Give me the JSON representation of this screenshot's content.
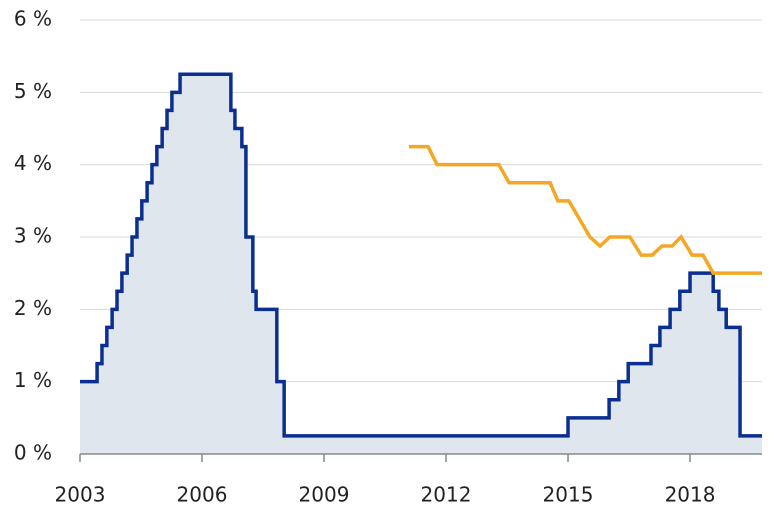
{
  "chart_data": {
    "type": "line",
    "xlim": [
      2003,
      2019.77
    ],
    "xticks": [
      2003,
      2006,
      2009,
      2012,
      2015,
      2018
    ],
    "ylim": [
      0,
      6
    ],
    "yticks": [
      {
        "value": 0,
        "label": "0 %"
      },
      {
        "value": 1,
        "label": "1 %"
      },
      {
        "value": 2,
        "label": "2 %"
      },
      {
        "value": 3,
        "label": "3 %"
      },
      {
        "value": 4,
        "label": "4 %"
      },
      {
        "value": 5,
        "label": "5 %"
      },
      {
        "value": 6,
        "label": "6 %"
      }
    ],
    "grid": true,
    "series": [
      {
        "color": "#0b2f91",
        "area_color": "#dfe6ee",
        "fill": true,
        "x": [
          2003.0,
          2003.42,
          2003.42,
          2003.54,
          2003.54,
          2003.66,
          2003.66,
          2003.79,
          2003.79,
          2003.91,
          2003.91,
          2004.03,
          2004.03,
          2004.16,
          2004.16,
          2004.28,
          2004.28,
          2004.4,
          2004.4,
          2004.52,
          2004.52,
          2004.65,
          2004.65,
          2004.77,
          2004.77,
          2004.89,
          2004.89,
          2005.02,
          2005.02,
          2005.14,
          2005.14,
          2005.26,
          2005.26,
          2005.46,
          2005.46,
          2006.71,
          2006.71,
          2006.81,
          2006.81,
          2006.98,
          2006.98,
          2007.08,
          2007.08,
          2007.25,
          2007.25,
          2007.33,
          2007.33,
          2007.84,
          2007.84,
          2008.02,
          2008.02,
          2015.0,
          2015.0,
          2016.01,
          2016.01,
          2016.25,
          2016.25,
          2016.48,
          2016.48,
          2017.04,
          2017.04,
          2017.26,
          2017.26,
          2017.51,
          2017.51,
          2017.75,
          2017.75,
          2018.0,
          2018.0,
          2018.57,
          2018.57,
          2018.71,
          2018.71,
          2018.89,
          2018.89,
          2019.23,
          2019.23,
          2019.77
        ],
        "values": [
          1,
          1,
          1.25,
          1.25,
          1.5,
          1.5,
          1.75,
          1.75,
          2,
          2,
          2.25,
          2.25,
          2.5,
          2.5,
          2.75,
          2.75,
          3,
          3,
          3.25,
          3.25,
          3.5,
          3.5,
          3.75,
          3.75,
          4,
          4,
          4.25,
          4.25,
          4.5,
          4.5,
          4.75,
          4.75,
          5,
          5,
          5.25,
          5.25,
          4.75,
          4.75,
          4.5,
          4.5,
          4.25,
          4.25,
          3,
          3,
          2.25,
          2.25,
          2,
          2,
          1,
          1,
          0.25,
          0.25,
          0.5,
          0.5,
          0.75,
          0.75,
          1,
          1,
          1.25,
          1.25,
          1.5,
          1.5,
          1.75,
          1.75,
          2,
          2,
          2.25,
          2.25,
          2.5,
          2.5,
          2.25,
          2.25,
          2,
          2,
          1.75,
          1.75,
          0.25,
          0.25
        ]
      },
      {
        "color": "#f5a623",
        "fill": false,
        "x": [
          2011.09,
          2011.56,
          2011.78,
          2013.3,
          2013.55,
          2014.56,
          2014.75,
          2015.02,
          2015.54,
          2015.79,
          2016.03,
          2016.52,
          2016.8,
          2017.07,
          2017.31,
          2017.56,
          2017.78,
          2018.05,
          2018.32,
          2018.57,
          2019.77
        ],
        "values": [
          4.25,
          4.25,
          4,
          4,
          3.75,
          3.75,
          3.5,
          3.5,
          3,
          2.875,
          3,
          3,
          2.75,
          2.75,
          2.875,
          2.875,
          3,
          2.75,
          2.75,
          2.5,
          2.5
        ]
      }
    ]
  }
}
